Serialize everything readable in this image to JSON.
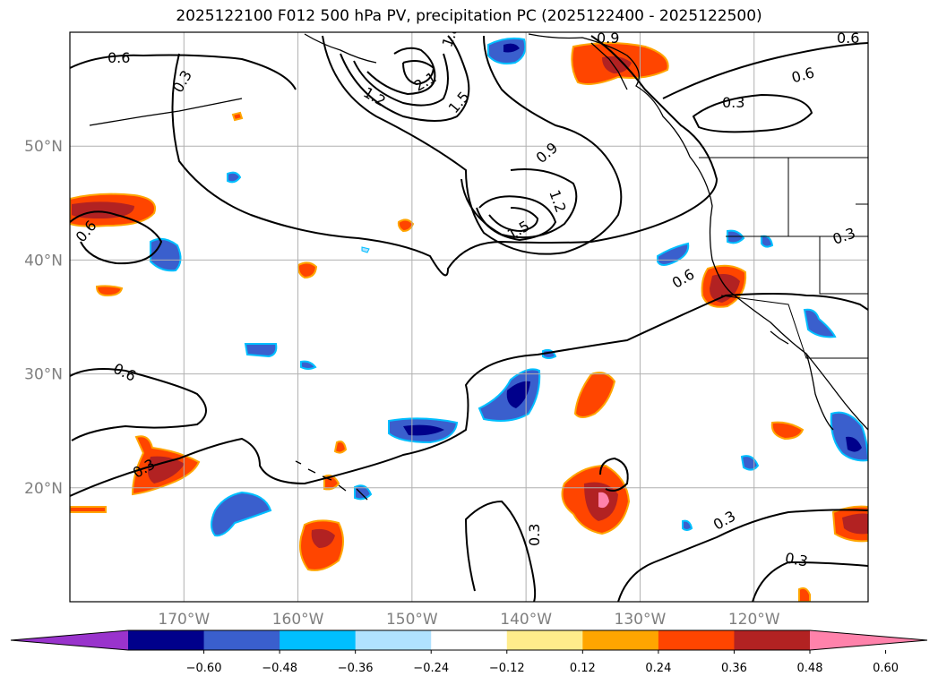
{
  "title": "2025122100 F012 500 hPa PV, precipitation PC (2025122400 - 2025122500)",
  "map": {
    "lon_range": [
      -180,
      -110
    ],
    "lat_range": [
      10,
      60
    ],
    "lon_labels": [
      {
        "lon": -170,
        "text": "170°W"
      },
      {
        "lon": -160,
        "text": "160°W"
      },
      {
        "lon": -150,
        "text": "150°W"
      },
      {
        "lon": -140,
        "text": "140°W"
      },
      {
        "lon": -130,
        "text": "130°W"
      },
      {
        "lon": -120,
        "text": "120°W"
      }
    ],
    "lat_labels": [
      {
        "lat": 50,
        "text": "50°N"
      },
      {
        "lat": 40,
        "text": "40°N"
      },
      {
        "lat": 30,
        "text": "30°N"
      },
      {
        "lat": 20,
        "text": "20°N"
      }
    ],
    "gridlines": true,
    "contour_labels": [
      "0.6",
      "0.3",
      "0.9",
      "1.2",
      "1.5",
      "2.1",
      "1.8",
      "0.6",
      "0.3",
      "0.9",
      "1.2",
      "1.5",
      "0.6",
      "0.6",
      "0.3",
      "0.6",
      "0.3",
      "0.3",
      "0.3",
      "0.3"
    ]
  },
  "colorbar": {
    "ticks": [
      "−0.60",
      "−0.48",
      "−0.36",
      "−0.24",
      "−0.12",
      "0.12",
      "0.24",
      "0.36",
      "0.48",
      "0.60"
    ],
    "colors": [
      "#9933cc",
      "#00008b",
      "#3a5fcd",
      "#00bfff",
      "#b0e2ff",
      "#ffffff",
      "#ffec8b",
      "#ffa500",
      "#ff4500",
      "#b22222",
      "#ff82ab"
    ],
    "extend": "both"
  }
}
